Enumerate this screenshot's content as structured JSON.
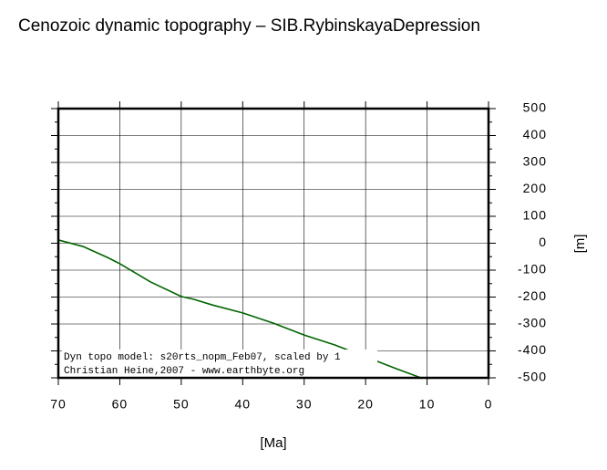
{
  "chart_data": {
    "type": "line",
    "title": "Cenozoic dynamic topography – SIB.RybinskayaDepression",
    "xlabel": "[Ma]",
    "ylabel": "[m]",
    "annotation": [
      "Dyn topo model: s20rts_nopm_Feb07, scaled by 1",
      "Christian Heine,2007 - www.earthbyte.org"
    ],
    "x": [
      70,
      66,
      62,
      60,
      55,
      50,
      48,
      45,
      40,
      35,
      30,
      25,
      20,
      15,
      11
    ],
    "series": [
      {
        "name": "dynamic topography",
        "color": "#006400",
        "values": [
          12,
          -12,
          -53,
          -76,
          -144,
          -198,
          -208,
          -229,
          -259,
          -297,
          -341,
          -378,
          -422,
          -466,
          -500
        ]
      }
    ],
    "xlim": [
      70,
      0
    ],
    "xticks": [
      70,
      60,
      50,
      40,
      30,
      20,
      10,
      0
    ],
    "ylim": [
      -500,
      500
    ],
    "yticks": [
      -500,
      -400,
      -300,
      -200,
      -100,
      0,
      100,
      200,
      300,
      400,
      500
    ],
    "grid": true
  }
}
